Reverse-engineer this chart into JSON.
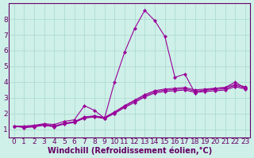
{
  "x_values": [
    0,
    1,
    2,
    3,
    4,
    5,
    6,
    7,
    8,
    9,
    10,
    11,
    12,
    13,
    14,
    15,
    16,
    17,
    18,
    19,
    20,
    21,
    22,
    23
  ],
  "line_main": [
    1.2,
    1.2,
    1.25,
    1.35,
    1.3,
    1.5,
    1.6,
    2.5,
    2.2,
    1.7,
    4.0,
    5.9,
    7.4,
    8.55,
    7.9,
    6.9,
    4.3,
    4.5,
    3.3,
    3.5,
    3.6,
    3.65,
    4.0,
    3.6
  ],
  "line_a": [
    1.2,
    1.15,
    1.2,
    1.3,
    1.2,
    1.38,
    1.48,
    1.78,
    1.85,
    1.75,
    2.1,
    2.5,
    2.85,
    3.2,
    3.45,
    3.55,
    3.6,
    3.65,
    3.5,
    3.55,
    3.6,
    3.65,
    3.85,
    3.7
  ],
  "line_b": [
    1.2,
    1.15,
    1.2,
    1.3,
    1.2,
    1.36,
    1.46,
    1.75,
    1.82,
    1.72,
    2.05,
    2.45,
    2.78,
    3.12,
    3.38,
    3.48,
    3.52,
    3.57,
    3.42,
    3.47,
    3.52,
    3.57,
    3.78,
    3.62
  ],
  "line_c": [
    1.2,
    1.1,
    1.15,
    1.25,
    1.15,
    1.33,
    1.43,
    1.7,
    1.78,
    1.68,
    2.0,
    2.38,
    2.7,
    3.05,
    3.3,
    3.4,
    3.44,
    3.49,
    3.34,
    3.39,
    3.44,
    3.49,
    3.7,
    3.55
  ],
  "line_color": "#990099",
  "background_color": "#cef0e8",
  "grid_color": "#a8d8cc",
  "axis_color": "#660066",
  "xlabel": "Windchill (Refroidissement éolien,°C)",
  "xlim": [
    -0.5,
    23.5
  ],
  "ylim": [
    0.5,
    9.0
  ],
  "yticks": [
    1,
    2,
    3,
    4,
    5,
    6,
    7,
    8
  ],
  "xticks": [
    0,
    1,
    2,
    3,
    4,
    5,
    6,
    7,
    8,
    9,
    10,
    11,
    12,
    13,
    14,
    15,
    16,
    17,
    18,
    19,
    20,
    21,
    22,
    23
  ],
  "font_size": 6.5,
  "label_fontsize": 7
}
